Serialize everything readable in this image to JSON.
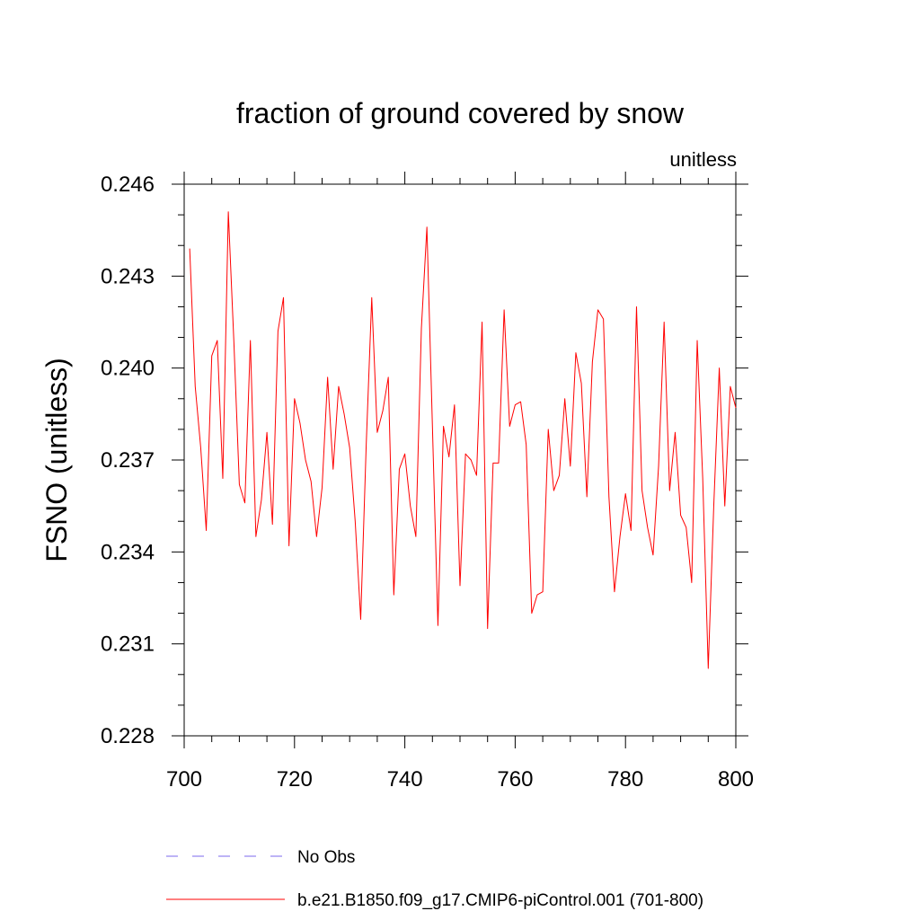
{
  "chart_data": {
    "type": "line",
    "title": "fraction of ground covered by snow",
    "subtitle_right": "unitless",
    "ylabel": "FSNO  (unitless)",
    "xlabel": "",
    "xlim": [
      700,
      800
    ],
    "ylim": [
      0.228,
      0.246
    ],
    "x_ticks": [
      700,
      720,
      740,
      760,
      780,
      800
    ],
    "x_tick_labels": [
      "700",
      "720",
      "740",
      "760",
      "780",
      "800"
    ],
    "y_ticks": [
      0.228,
      0.231,
      0.234,
      0.237,
      0.24,
      0.243,
      0.246
    ],
    "y_tick_labels": [
      "0.228",
      "0.231",
      "0.234",
      "0.237",
      "0.240",
      "0.243",
      "0.246"
    ],
    "grid": false,
    "legend_position": "bottom",
    "legend": [
      {
        "name": "No Obs",
        "color": "#7b68ee",
        "style": "dashed"
      },
      {
        "name": "b.e21.B1850.f09_g17.CMIP6-piControl.001 (701-800)",
        "color": "#ff0000",
        "style": "solid"
      }
    ],
    "series": [
      {
        "name": "b.e21.B1850.f09_g17.CMIP6-piControl.001 (701-800)",
        "color": "#ff0000",
        "x": [
          701,
          702,
          703,
          704,
          705,
          706,
          707,
          708,
          709,
          710,
          711,
          712,
          713,
          714,
          715,
          716,
          717,
          718,
          719,
          720,
          721,
          722,
          723,
          724,
          725,
          726,
          727,
          728,
          729,
          730,
          731,
          732,
          733,
          734,
          735,
          736,
          737,
          738,
          739,
          740,
          741,
          742,
          743,
          744,
          745,
          746,
          747,
          748,
          749,
          750,
          751,
          752,
          753,
          754,
          755,
          756,
          757,
          758,
          759,
          760,
          761,
          762,
          763,
          764,
          765,
          766,
          767,
          768,
          769,
          770,
          771,
          772,
          773,
          774,
          775,
          776,
          777,
          778,
          779,
          780,
          781,
          782,
          783,
          784,
          785,
          786,
          787,
          788,
          789,
          790,
          791,
          792,
          793,
          794,
          795,
          796,
          797,
          798,
          799,
          800
        ],
        "values": [
          0.2439,
          0.2394,
          0.2374,
          0.2347,
          0.2404,
          0.2409,
          0.2364,
          0.2451,
          0.2409,
          0.2362,
          0.2356,
          0.2409,
          0.2345,
          0.2357,
          0.2379,
          0.2349,
          0.2412,
          0.2423,
          0.2342,
          0.239,
          0.2382,
          0.237,
          0.2363,
          0.2345,
          0.2361,
          0.2397,
          0.2367,
          0.2394,
          0.2385,
          0.2374,
          0.235,
          0.2318,
          0.2375,
          0.2423,
          0.2379,
          0.2386,
          0.2397,
          0.2326,
          0.2367,
          0.2372,
          0.2355,
          0.2345,
          0.2413,
          0.2446,
          0.2381,
          0.2316,
          0.2381,
          0.2371,
          0.2388,
          0.2329,
          0.2372,
          0.237,
          0.2365,
          0.2415,
          0.2315,
          0.2369,
          0.2369,
          0.2419,
          0.2381,
          0.2388,
          0.2389,
          0.2375,
          0.232,
          0.2326,
          0.2327,
          0.238,
          0.236,
          0.2365,
          0.239,
          0.2368,
          0.2405,
          0.2395,
          0.2358,
          0.2402,
          0.2419,
          0.2416,
          0.2358,
          0.2327,
          0.2345,
          0.2359,
          0.2347,
          0.242,
          0.236,
          0.2348,
          0.2339,
          0.2368,
          0.2415,
          0.236,
          0.2379,
          0.2352,
          0.2348,
          0.233,
          0.2409,
          0.2364,
          0.2302,
          0.2355,
          0.24,
          0.2355,
          0.2394,
          0.2387
        ]
      }
    ]
  }
}
